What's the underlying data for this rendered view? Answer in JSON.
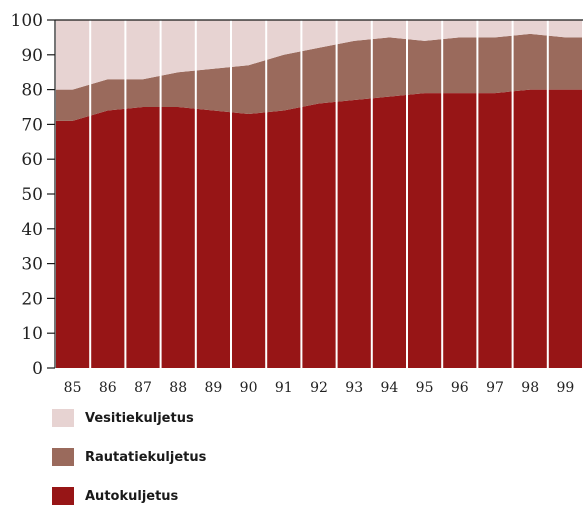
{
  "chart_data": {
    "type": "area",
    "stacked": true,
    "title": "",
    "xlabel": "",
    "ylabel": "",
    "ylim": [
      0,
      100
    ],
    "yticks": [
      0,
      10,
      20,
      30,
      40,
      50,
      60,
      70,
      80,
      90,
      100
    ],
    "categories": [
      "85",
      "86",
      "87",
      "88",
      "89",
      "90",
      "91",
      "92",
      "93",
      "94",
      "95",
      "96",
      "97",
      "98",
      "99"
    ],
    "series": [
      {
        "name": "Autokuljetus",
        "color": "#971516",
        "values": [
          71,
          74,
          75,
          75,
          74,
          73,
          74,
          76,
          77,
          78,
          79,
          79,
          79,
          80,
          80
        ]
      },
      {
        "name": "Rautatiekuljetus",
        "color": "#9a6a5c",
        "values": [
          9,
          9,
          8,
          10,
          12,
          14,
          16,
          16,
          17,
          17,
          15,
          16,
          16,
          16,
          15
        ]
      },
      {
        "name": "Vesitiekuljetus",
        "color": "#e7d3d2",
        "values": [
          20,
          17,
          17,
          15,
          14,
          13,
          10,
          8,
          6,
          5,
          6,
          5,
          5,
          4,
          5
        ]
      }
    ],
    "legend_position": "bottom-left",
    "legend_order": [
      "Vesitiekuljetus",
      "Rautatiekuljetus",
      "Autokuljetus"
    ],
    "vertical_separators": true
  }
}
